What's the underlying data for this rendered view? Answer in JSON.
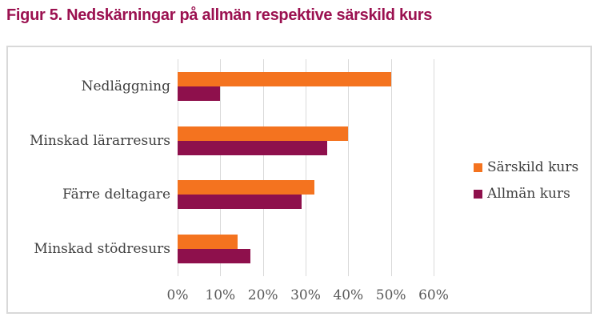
{
  "title": "Figur 5. Nedskärningar på allmän respektive särskild kurs",
  "colors": {
    "title_text": "#9B1150",
    "sarskild_kurs": "#F4731F",
    "allman_kurs": "#8E104C",
    "gridline": "#D9D9D9",
    "frame_border": "#D9D9D9",
    "axis_text": "#595959",
    "category_text": "#3F3F3F"
  },
  "chart_data": {
    "type": "bar",
    "orientation": "horizontal",
    "title": "Figur 5. Nedskärningar på allmän respektive särskild kurs",
    "categories": [
      "Nedläggning",
      "Minskad lärarresurs",
      "Färre deltagare",
      "Minskad stödresurs"
    ],
    "series": [
      {
        "name": "Särskild kurs",
        "color": "#F4731F",
        "values": [
          50,
          40,
          32,
          14
        ]
      },
      {
        "name": "Allmän kurs",
        "color": "#8E104C",
        "values": [
          10,
          35,
          29,
          17
        ]
      }
    ],
    "xlabel": "",
    "ylabel": "",
    "xlim": [
      0,
      60
    ],
    "x_ticks": [
      "0%",
      "10%",
      "20%",
      "30%",
      "40%",
      "50%",
      "60%"
    ],
    "grid": true,
    "legend_position": "right"
  }
}
